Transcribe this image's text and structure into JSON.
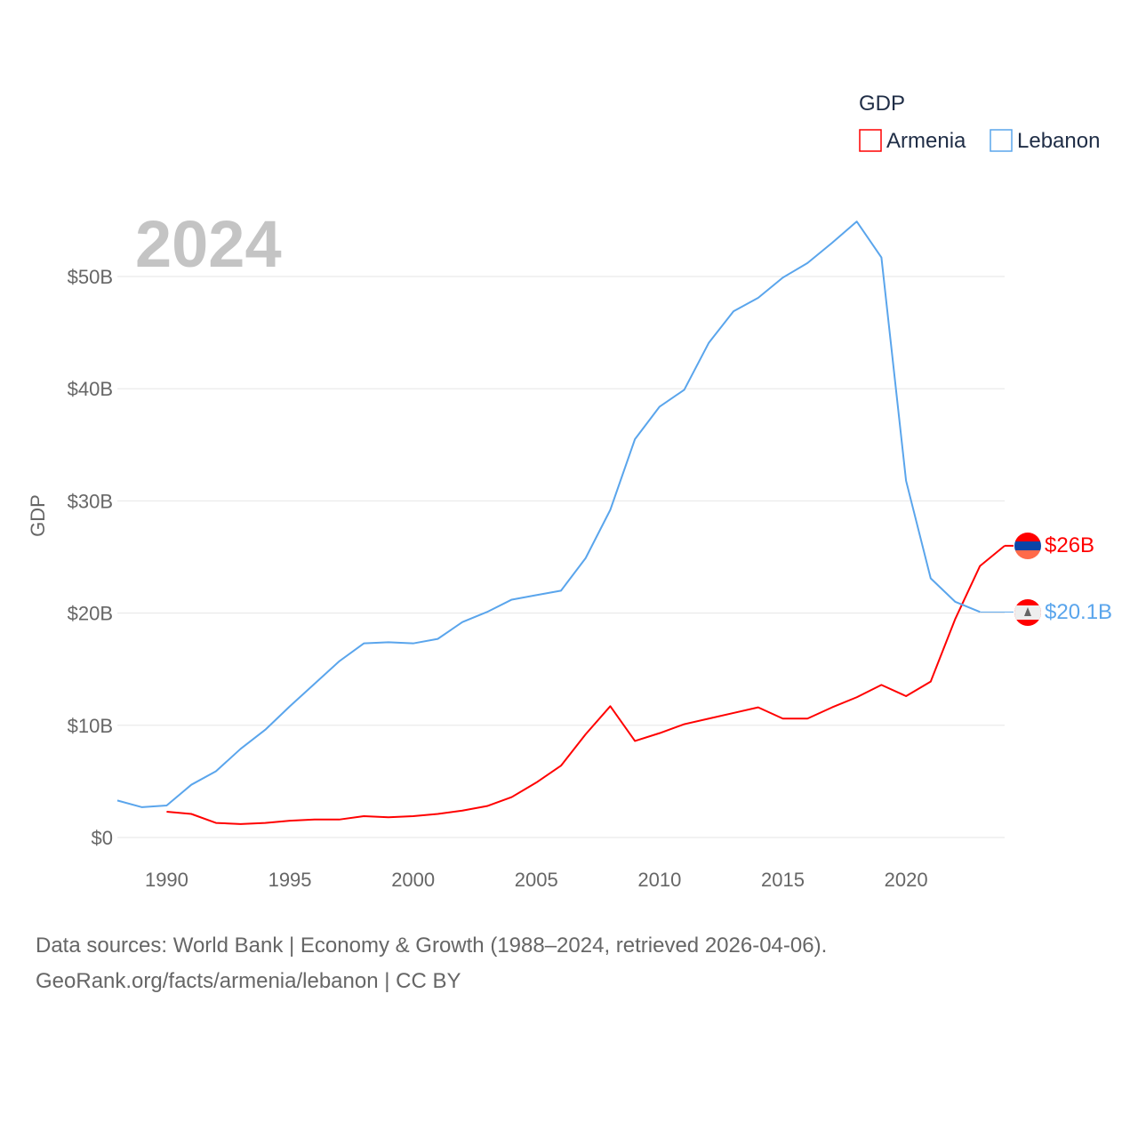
{
  "chart_data": {
    "type": "line",
    "title": "GDP",
    "year_label": "2024",
    "ylabel": "GDP",
    "xlabel": "",
    "xlim": [
      1988,
      2024
    ],
    "ylim": [
      0,
      55
    ],
    "x_ticks": [
      1990,
      1995,
      2000,
      2005,
      2010,
      2015,
      2020
    ],
    "y_ticks": [
      0,
      10,
      20,
      30,
      40,
      50
    ],
    "y_tick_labels": [
      "$0",
      "$10B",
      "$20B",
      "$30B",
      "$40B",
      "$50B"
    ],
    "grid": true,
    "legend": "top-right",
    "series": [
      {
        "name": "Armenia",
        "color": "#ff0000",
        "end_label": "$26B",
        "flag": "armenia-flag",
        "x": [
          1990,
          1991,
          1992,
          1993,
          1994,
          1995,
          1996,
          1997,
          1998,
          1999,
          2000,
          2001,
          2002,
          2003,
          2004,
          2005,
          2006,
          2007,
          2008,
          2009,
          2010,
          2011,
          2012,
          2013,
          2014,
          2015,
          2016,
          2017,
          2018,
          2019,
          2020,
          2021,
          2022,
          2023,
          2024
        ],
        "values": [
          2.3,
          2.1,
          1.3,
          1.2,
          1.3,
          1.5,
          1.6,
          1.6,
          1.9,
          1.8,
          1.9,
          2.1,
          2.4,
          2.8,
          3.6,
          4.9,
          6.4,
          9.2,
          11.7,
          8.6,
          9.3,
          10.1,
          10.6,
          11.1,
          11.6,
          10.6,
          10.6,
          11.6,
          12.5,
          13.6,
          12.6,
          13.9,
          19.5,
          24.2,
          26.0
        ]
      },
      {
        "name": "Lebanon",
        "color": "#5aa5ec",
        "end_label": "$20.1B",
        "flag": "lebanon-flag",
        "x": [
          1988,
          1989,
          1990,
          1991,
          1992,
          1993,
          1994,
          1995,
          1996,
          1997,
          1998,
          1999,
          2000,
          2001,
          2002,
          2003,
          2004,
          2005,
          2006,
          2007,
          2008,
          2009,
          2010,
          2011,
          2012,
          2013,
          2014,
          2015,
          2016,
          2017,
          2018,
          2019,
          2020,
          2021,
          2022,
          2023
        ],
        "values": [
          3.3,
          2.7,
          2.85,
          4.7,
          5.9,
          7.9,
          9.6,
          11.7,
          13.7,
          15.7,
          17.3,
          17.4,
          17.3,
          17.7,
          19.2,
          20.1,
          21.2,
          21.6,
          22.0,
          24.9,
          29.2,
          35.5,
          38.4,
          39.9,
          44.1,
          46.9,
          48.1,
          49.9,
          51.2,
          53.0,
          54.9,
          51.7,
          31.8,
          23.1,
          21.0,
          20.1
        ],
        "projected_end": 20.1
      }
    ]
  },
  "footer": {
    "line1": "Data sources: World Bank | Economy & Growth (1988–2024, retrieved 2026-04-06).",
    "line2": "GeoRank.org/facts/armenia/lebanon | CC BY"
  }
}
